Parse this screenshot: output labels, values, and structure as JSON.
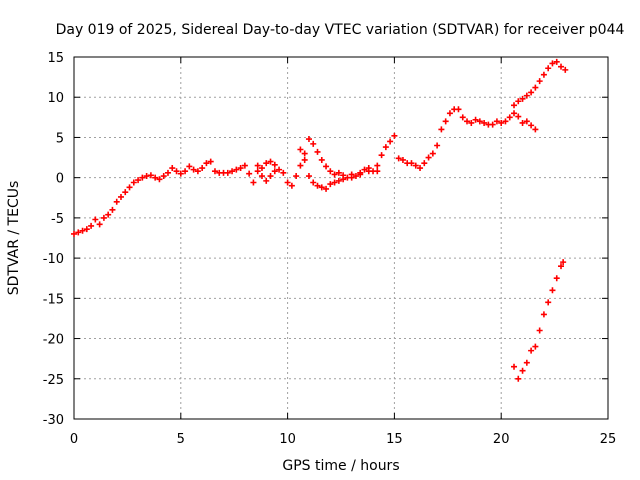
{
  "chart_data": {
    "type": "scatter",
    "title": "Day 019 of 2025, Sidereal Day-to-day VTEC variation (SDTVAR) for receiver p044",
    "xlabel": "GPS time / hours",
    "ylabel": "SDTVAR / TECUs",
    "xlim": [
      0,
      25
    ],
    "ylim": [
      -30,
      15
    ],
    "x_ticks": [
      0,
      5,
      10,
      15,
      20,
      25
    ],
    "y_ticks": [
      -30,
      -25,
      -20,
      -15,
      -10,
      -5,
      0,
      5,
      10,
      15
    ],
    "grid": true,
    "marker": "+",
    "color": "#ff0000",
    "series": [
      {
        "points": [
          [
            0.0,
            -7.0
          ],
          [
            0.2,
            -6.8
          ],
          [
            0.4,
            -6.6
          ],
          [
            0.6,
            -6.4
          ],
          [
            0.8,
            -6.0
          ],
          [
            1.0,
            -5.2
          ],
          [
            1.2,
            -5.8
          ],
          [
            1.4,
            -5.0
          ],
          [
            1.6,
            -4.6
          ],
          [
            1.8,
            -4.0
          ],
          [
            2.0,
            -3.0
          ],
          [
            2.2,
            -2.4
          ],
          [
            2.4,
            -1.8
          ],
          [
            2.6,
            -1.2
          ],
          [
            2.8,
            -0.6
          ],
          [
            3.0,
            -0.3
          ],
          [
            3.2,
            0.0
          ],
          [
            3.4,
            0.2
          ],
          [
            3.6,
            0.3
          ],
          [
            3.8,
            0.0
          ],
          [
            4.0,
            -0.2
          ],
          [
            4.2,
            0.2
          ],
          [
            4.4,
            0.6
          ],
          [
            4.6,
            1.2
          ],
          [
            4.8,
            0.8
          ],
          [
            5.0,
            0.5
          ],
          [
            5.2,
            0.8
          ],
          [
            5.4,
            1.4
          ],
          [
            5.6,
            1.0
          ],
          [
            5.8,
            0.8
          ],
          [
            6.0,
            1.2
          ],
          [
            6.2,
            1.8
          ],
          [
            6.4,
            2.0
          ],
          [
            6.6,
            0.8
          ],
          [
            6.8,
            0.6
          ],
          [
            7.0,
            0.6
          ],
          [
            7.2,
            0.6
          ],
          [
            7.4,
            0.8
          ],
          [
            7.6,
            1.0
          ],
          [
            7.8,
            1.2
          ],
          [
            8.0,
            1.5
          ],
          [
            8.2,
            0.5
          ],
          [
            8.4,
            -0.6
          ],
          [
            8.6,
            1.5
          ],
          [
            8.8,
            1.2
          ],
          [
            9.0,
            1.8
          ],
          [
            9.2,
            2.0
          ],
          [
            9.4,
            1.6
          ],
          [
            9.6,
            1.0
          ],
          [
            9.8,
            0.6
          ],
          [
            10.0,
            -0.6
          ],
          [
            10.2,
            -1.0
          ],
          [
            10.4,
            0.2
          ],
          [
            10.6,
            1.5
          ],
          [
            10.8,
            3.0
          ],
          [
            11.0,
            4.8
          ],
          [
            11.2,
            4.2
          ],
          [
            11.4,
            3.2
          ],
          [
            11.6,
            2.2
          ],
          [
            11.8,
            1.4
          ],
          [
            12.0,
            0.8
          ],
          [
            12.2,
            0.4
          ],
          [
            12.4,
            0.6
          ],
          [
            12.6,
            0.3
          ],
          [
            12.8,
            0.0
          ],
          [
            13.0,
            0.0
          ],
          [
            13.2,
            0.2
          ],
          [
            13.4,
            0.6
          ],
          [
            13.6,
            1.0
          ],
          [
            13.8,
            0.8
          ],
          [
            14.0,
            0.8
          ],
          [
            14.2,
            1.5
          ],
          [
            14.4,
            2.8
          ],
          [
            14.6,
            3.8
          ],
          [
            14.8,
            4.5
          ],
          [
            15.0,
            5.2
          ],
          [
            15.2,
            2.4
          ],
          [
            15.4,
            2.2
          ],
          [
            15.6,
            1.8
          ],
          [
            15.8,
            1.8
          ],
          [
            16.0,
            1.5
          ],
          [
            16.2,
            1.2
          ],
          [
            16.4,
            1.8
          ],
          [
            16.6,
            2.5
          ],
          [
            16.8,
            3.0
          ],
          [
            17.0,
            4.0
          ],
          [
            17.2,
            6.0
          ],
          [
            17.4,
            7.0
          ],
          [
            17.6,
            8.0
          ],
          [
            17.8,
            8.5
          ],
          [
            18.0,
            8.5
          ],
          [
            18.2,
            7.5
          ],
          [
            18.4,
            7.0
          ],
          [
            18.6,
            6.8
          ],
          [
            18.8,
            7.2
          ],
          [
            19.0,
            7.0
          ],
          [
            19.2,
            6.8
          ],
          [
            19.4,
            6.6
          ],
          [
            19.6,
            6.6
          ],
          [
            19.8,
            7.0
          ],
          [
            20.0,
            6.8
          ],
          [
            20.2,
            7.0
          ],
          [
            20.4,
            7.5
          ],
          [
            20.6,
            8.0
          ],
          [
            20.8,
            7.6
          ],
          [
            21.0,
            6.8
          ],
          [
            21.2,
            7.0
          ],
          [
            21.4,
            6.5
          ],
          [
            21.6,
            6.0
          ],
          [
            20.6,
            9.0
          ],
          [
            20.8,
            9.5
          ],
          [
            21.0,
            9.8
          ],
          [
            21.2,
            10.2
          ],
          [
            21.4,
            10.6
          ],
          [
            21.6,
            11.2
          ],
          [
            21.8,
            12.0
          ],
          [
            22.0,
            12.8
          ],
          [
            22.2,
            13.6
          ],
          [
            22.4,
            14.2
          ],
          [
            22.6,
            14.4
          ],
          [
            22.8,
            13.8
          ],
          [
            23.0,
            13.4
          ],
          [
            10.6,
            3.5
          ],
          [
            10.8,
            2.2
          ],
          [
            11.0,
            0.2
          ],
          [
            11.2,
            -0.6
          ],
          [
            11.4,
            -1.0
          ],
          [
            11.6,
            -1.2
          ],
          [
            11.8,
            -1.4
          ],
          [
            12.0,
            -0.8
          ],
          [
            12.2,
            -0.6
          ],
          [
            12.4,
            -0.4
          ],
          [
            12.6,
            -0.2
          ],
          [
            13.0,
            0.4
          ],
          [
            13.4,
            0.4
          ],
          [
            13.8,
            1.2
          ],
          [
            14.2,
            0.8
          ],
          [
            8.6,
            0.8
          ],
          [
            8.8,
            0.2
          ],
          [
            9.0,
            -0.4
          ],
          [
            9.2,
            0.2
          ],
          [
            9.4,
            0.8
          ]
        ]
      },
      {
        "points": [
          [
            20.6,
            -23.5
          ],
          [
            20.8,
            -25.0
          ],
          [
            21.0,
            -24.0
          ],
          [
            21.2,
            -23.0
          ],
          [
            21.4,
            -21.5
          ],
          [
            21.6,
            -21.0
          ],
          [
            21.8,
            -19.0
          ],
          [
            22.0,
            -17.0
          ],
          [
            22.2,
            -15.5
          ],
          [
            22.4,
            -14.0
          ],
          [
            22.6,
            -12.5
          ],
          [
            22.8,
            -11.0
          ],
          [
            22.9,
            -10.5
          ]
        ]
      }
    ]
  }
}
